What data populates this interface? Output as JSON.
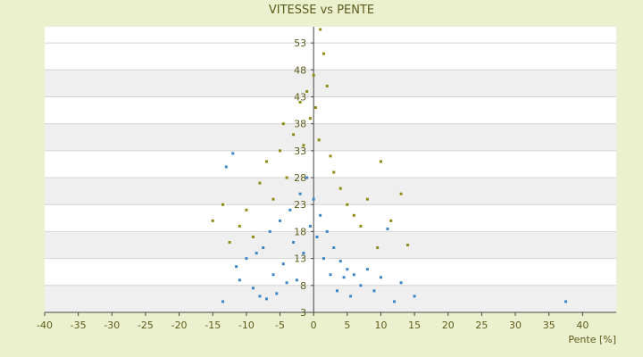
{
  "chart_data": {
    "type": "scatter",
    "title": "VITESSE vs PENTE",
    "xlabel": "Pente [%]",
    "ylabel": "",
    "xlim": [
      -40,
      45
    ],
    "ylim": [
      3,
      56
    ],
    "x_ticks": [
      "-40",
      "-35",
      "-30",
      "-25",
      "-20",
      "-15",
      "-10",
      "-5",
      "0",
      "5",
      "10",
      "15",
      "20",
      "25",
      "30",
      "35",
      "40"
    ],
    "y_ticks": [
      "3",
      "8",
      "13",
      "18",
      "23",
      "28",
      "33",
      "38",
      "43",
      "48",
      "53"
    ],
    "grid": true,
    "legend": "none",
    "series": [
      {
        "color": "#3b85c8",
        "values": [
          [
            -13.5,
            5.0
          ],
          [
            -13.0,
            30.0
          ],
          [
            -12.0,
            32.5
          ],
          [
            -11.0,
            9.0
          ],
          [
            -11.5,
            11.5
          ],
          [
            -10.0,
            13.0
          ],
          [
            -9.0,
            7.5
          ],
          [
            -8.5,
            14.0
          ],
          [
            -8.0,
            6.0
          ],
          [
            -7.5,
            15.0
          ],
          [
            -7.0,
            5.5
          ],
          [
            -6.5,
            18.0
          ],
          [
            -6.0,
            10.0
          ],
          [
            -5.5,
            6.5
          ],
          [
            -5.0,
            20.0
          ],
          [
            -4.5,
            12.0
          ],
          [
            -4.0,
            8.5
          ],
          [
            -3.5,
            22.0
          ],
          [
            -3.0,
            16.0
          ],
          [
            -2.5,
            9.0
          ],
          [
            -2.0,
            25.0
          ],
          [
            -1.5,
            14.0
          ],
          [
            -1.0,
            28.0
          ],
          [
            -0.5,
            19.0
          ],
          [
            0.0,
            24.0
          ],
          [
            0.5,
            17.0
          ],
          [
            1.0,
            21.0
          ],
          [
            1.5,
            13.0
          ],
          [
            2.0,
            18.0
          ],
          [
            2.5,
            10.0
          ],
          [
            3.0,
            15.0
          ],
          [
            3.5,
            7.0
          ],
          [
            4.0,
            12.5
          ],
          [
            4.5,
            9.5
          ],
          [
            5.0,
            11.0
          ],
          [
            5.5,
            6.0
          ],
          [
            6.0,
            10.0
          ],
          [
            7.0,
            8.0
          ],
          [
            8.0,
            11.0
          ],
          [
            9.0,
            7.0
          ],
          [
            10.0,
            9.5
          ],
          [
            11.0,
            18.5
          ],
          [
            12.0,
            5.0
          ],
          [
            13.0,
            8.5
          ],
          [
            15.0,
            6.0
          ],
          [
            37.5,
            5.0
          ]
        ]
      },
      {
        "color": "#8c8c14",
        "values": [
          [
            -15.0,
            20.0
          ],
          [
            -13.5,
            23.0
          ],
          [
            -12.5,
            16.0
          ],
          [
            -11.0,
            19.0
          ],
          [
            -10.0,
            22.0
          ],
          [
            -9.0,
            17.0
          ],
          [
            -8.0,
            27.0
          ],
          [
            -7.0,
            31.0
          ],
          [
            -6.0,
            24.0
          ],
          [
            -5.0,
            33.0
          ],
          [
            -4.5,
            38.0
          ],
          [
            -4.0,
            28.0
          ],
          [
            -3.0,
            36.0
          ],
          [
            -2.0,
            42.0
          ],
          [
            -1.5,
            34.0
          ],
          [
            -1.0,
            44.0
          ],
          [
            -0.5,
            39.0
          ],
          [
            0.0,
            47.0
          ],
          [
            0.3,
            41.0
          ],
          [
            0.8,
            35.0
          ],
          [
            1.0,
            55.5
          ],
          [
            1.5,
            51.0
          ],
          [
            2.0,
            45.0
          ],
          [
            2.5,
            32.0
          ],
          [
            3.0,
            29.0
          ],
          [
            4.0,
            26.0
          ],
          [
            5.0,
            23.0
          ],
          [
            6.0,
            21.0
          ],
          [
            7.0,
            19.0
          ],
          [
            8.0,
            24.0
          ],
          [
            9.5,
            15.0
          ],
          [
            10.0,
            31.0
          ],
          [
            11.5,
            20.0
          ],
          [
            13.0,
            25.0
          ],
          [
            14.0,
            15.5
          ]
        ]
      }
    ]
  }
}
